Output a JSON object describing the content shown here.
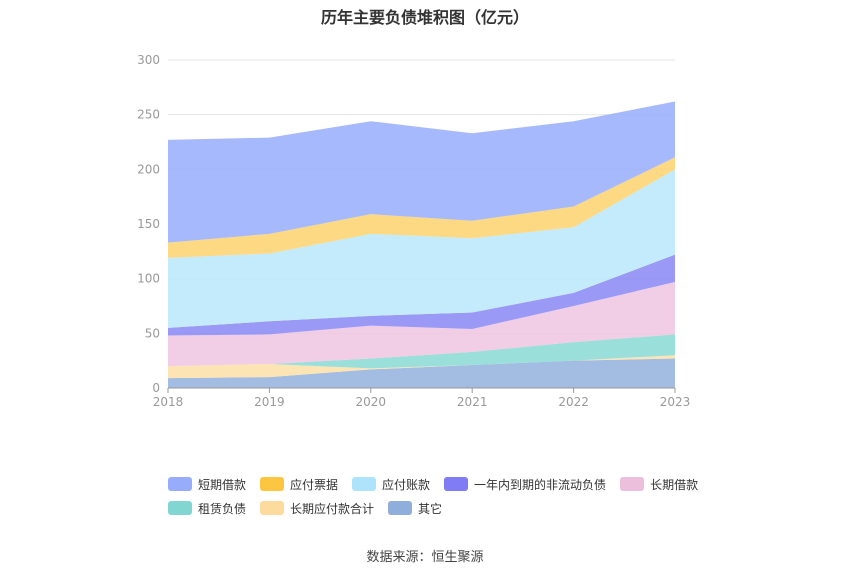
{
  "chart_data": {
    "type": "area",
    "stacked": true,
    "title": "历年主要负债堆积图（亿元）",
    "x": [
      "2018",
      "2019",
      "2020",
      "2021",
      "2022",
      "2023"
    ],
    "ylim": [
      0,
      300
    ],
    "yticks": [
      0,
      50,
      100,
      150,
      200,
      250,
      300
    ],
    "grid": true,
    "legend_position": "bottom",
    "series": [
      {
        "name": "其它",
        "color": "#93b0dd",
        "values": [
          9,
          10,
          17,
          21,
          25,
          27
        ]
      },
      {
        "name": "长期应付款合计",
        "color": "#fddfa8",
        "values": [
          11,
          12,
          1,
          0,
          0,
          3
        ]
      },
      {
        "name": "租赁负债",
        "color": "#89d9d5",
        "values": [
          0,
          0,
          9,
          12,
          17,
          19
        ]
      },
      {
        "name": "长期借款",
        "color": "#eec6e1",
        "values": [
          28,
          27,
          30,
          21,
          33,
          48
        ]
      },
      {
        "name": "一年内到期的非流动负债",
        "color": "#8a87f5",
        "values": [
          7,
          12,
          9,
          15,
          12,
          25
        ]
      },
      {
        "name": "应付账款",
        "color": "#b9e7fb",
        "values": [
          64,
          62,
          75,
          68,
          60,
          78
        ]
      },
      {
        "name": "应付票据",
        "color": "#fdd26d",
        "values": [
          14,
          18,
          18,
          16,
          19,
          11
        ]
      },
      {
        "name": "短期借款",
        "color": "#97adfc",
        "values": [
          94,
          88,
          85,
          80,
          78,
          51
        ]
      }
    ]
  },
  "legend": {
    "row1": [
      {
        "label": "短期借款",
        "color": "#97adfc"
      },
      {
        "label": "应付票据",
        "color": "#fdc640"
      },
      {
        "label": "应付账款",
        "color": "#aee4fb"
      },
      {
        "label": "一年内到期的非流动负债",
        "color": "#7f7cf5"
      },
      {
        "label": "长期借款",
        "color": "#ecbfdc"
      }
    ],
    "row2": [
      {
        "label": "租赁负债",
        "color": "#82d6d2"
      },
      {
        "label": "长期应付款合计",
        "color": "#fddb9e"
      },
      {
        "label": "其它",
        "color": "#90aedb"
      }
    ]
  },
  "source": "数据来源：恒生聚源"
}
